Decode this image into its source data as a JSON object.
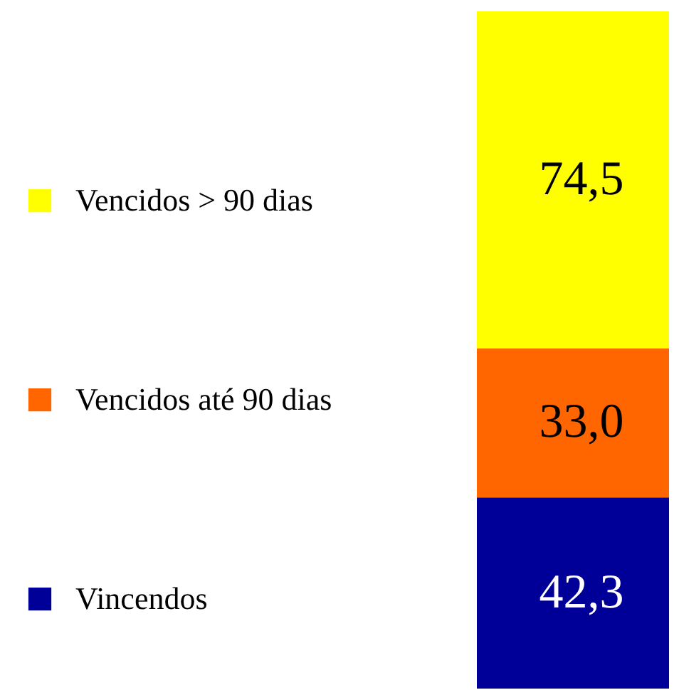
{
  "chart_data": {
    "type": "bar",
    "stacked": true,
    "categories": [
      null
    ],
    "legend": "left",
    "tick_labels": false,
    "series": [
      {
        "name": "Vincendos",
        "color": "#000099",
        "values": [
          42.3
        ],
        "value_labels": [
          "42,3"
        ]
      },
      {
        "name": "Vencidos até 90 dias",
        "color": "#ff6600",
        "values": [
          33.0
        ],
        "value_labels": [
          "33,0"
        ]
      },
      {
        "name": "Vencidos > 90 dias",
        "color": "#ffff00",
        "values": [
          74.5
        ],
        "value_labels": [
          "74,5"
        ]
      }
    ]
  }
}
